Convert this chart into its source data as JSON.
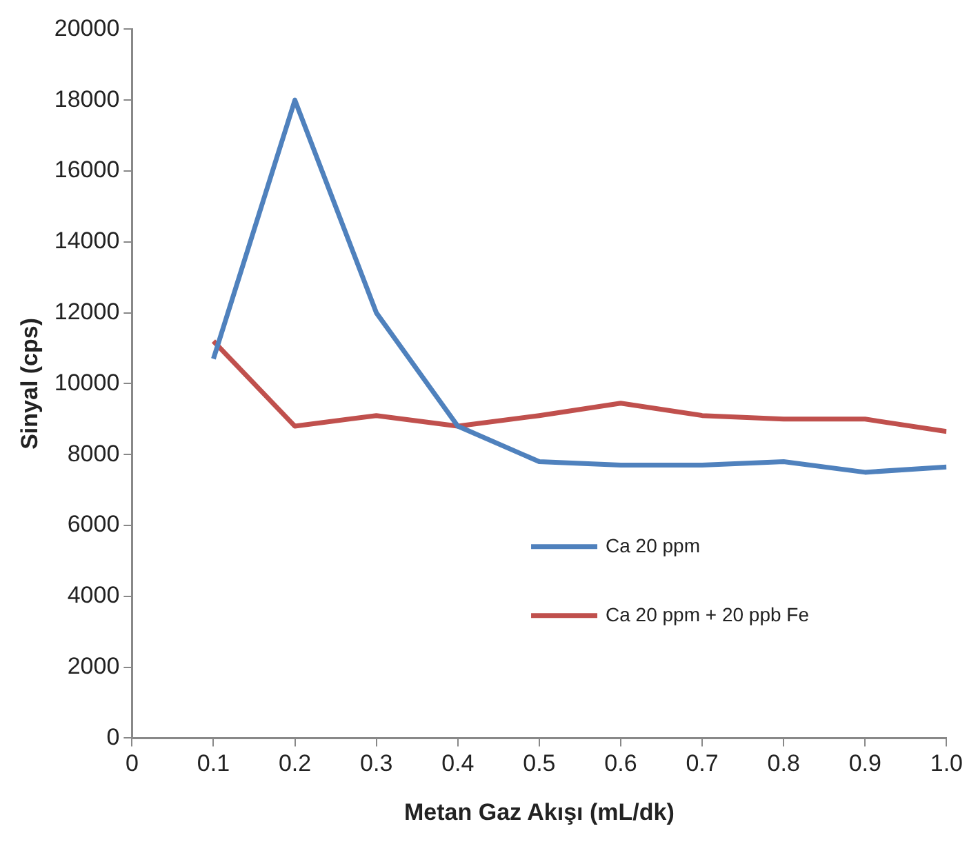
{
  "chart_data": {
    "type": "line",
    "xlabel": "Metan Gaz Akışı (mL/dk)",
    "ylabel": "Sinyal (cps)",
    "x": [
      0.1,
      0.2,
      0.3,
      0.4,
      0.5,
      0.6,
      0.7,
      0.8,
      0.9,
      1.0
    ],
    "series": [
      {
        "name": "Ca 20 ppm",
        "color": "#4f81bd",
        "values": [
          10700,
          18000,
          12000,
          8800,
          7800,
          7700,
          7700,
          7800,
          7500,
          7650
        ]
      },
      {
        "name": "Ca 20 ppm + 20 ppb Fe",
        "color": "#c0504d",
        "values": [
          11200,
          8800,
          9100,
          8800,
          9100,
          9450,
          9100,
          9000,
          9000,
          8650
        ]
      }
    ],
    "xlim": [
      0,
      1
    ],
    "xticks": [
      0,
      0.1,
      0.2,
      0.3,
      0.4,
      0.5,
      0.6,
      0.7,
      0.8,
      0.9,
      {
        "value": 1,
        "label": "1.0"
      }
    ],
    "ylim": [
      0,
      20000
    ],
    "yticks": [
      0,
      2000,
      4000,
      6000,
      8000,
      10000,
      12000,
      14000,
      16000,
      18000,
      20000
    ],
    "grid": false,
    "legend": "right",
    "marker": "none",
    "line_style": "solid"
  }
}
